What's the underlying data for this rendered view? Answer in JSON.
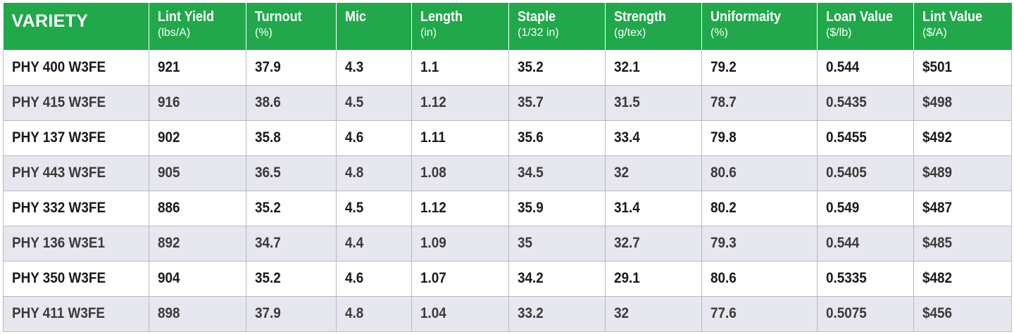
{
  "table": {
    "headers": [
      {
        "title": "VARIETY",
        "unit": ""
      },
      {
        "title": "Lint Yield",
        "unit": "(lbs/A)"
      },
      {
        "title": "Turnout",
        "unit": "(%)"
      },
      {
        "title": "Mic",
        "unit": ""
      },
      {
        "title": "Length",
        "unit": "(in)"
      },
      {
        "title": "Staple",
        "unit": "(1/32 in)"
      },
      {
        "title": "Strength",
        "unit": "(g/tex)"
      },
      {
        "title": "Uniformaity",
        "unit": "(%)"
      },
      {
        "title": "Loan Value",
        "unit": "($/lb)"
      },
      {
        "title": "Lint Value",
        "unit": "($/A)"
      }
    ],
    "rows": [
      [
        "PHY 400 W3FE",
        "921",
        "37.9",
        "4.3",
        "1.1",
        "35.2",
        "32.1",
        "79.2",
        "0.544",
        "$501"
      ],
      [
        "PHY 415 W3FE",
        "916",
        "38.6",
        "4.5",
        "1.12",
        "35.7",
        "31.5",
        "78.7",
        "0.5435",
        "$498"
      ],
      [
        "PHY 137 W3FE",
        "902",
        "35.8",
        "4.6",
        "1.11",
        "35.6",
        "33.4",
        "79.8",
        "0.5455",
        "$492"
      ],
      [
        "PHY 443 W3FE",
        "905",
        "36.5",
        "4.8",
        "1.08",
        "34.5",
        "32",
        "80.6",
        "0.5405",
        "$489"
      ],
      [
        "PHY 332 W3FE",
        "886",
        "35.2",
        "4.5",
        "1.12",
        "35.9",
        "31.4",
        "80.2",
        "0.549",
        "$487"
      ],
      [
        "PHY 136 W3E1",
        "892",
        "34.7",
        "4.4",
        "1.09",
        "35",
        "32.7",
        "79.3",
        "0.544",
        "$485"
      ],
      [
        "PHY 350 W3FE",
        "904",
        "35.2",
        "4.6",
        "1.07",
        "34.2",
        "29.1",
        "80.6",
        "0.5335",
        "$482"
      ],
      [
        "PHY 411 W3FE",
        "898",
        "37.9",
        "4.8",
        "1.04",
        "33.2",
        "32",
        "77.6",
        "0.5075",
        "$456"
      ]
    ]
  },
  "colors": {
    "header_bg": "#20a84a",
    "row_alt_bg": "#e7e7ef",
    "border": "#b9b9c4"
  }
}
